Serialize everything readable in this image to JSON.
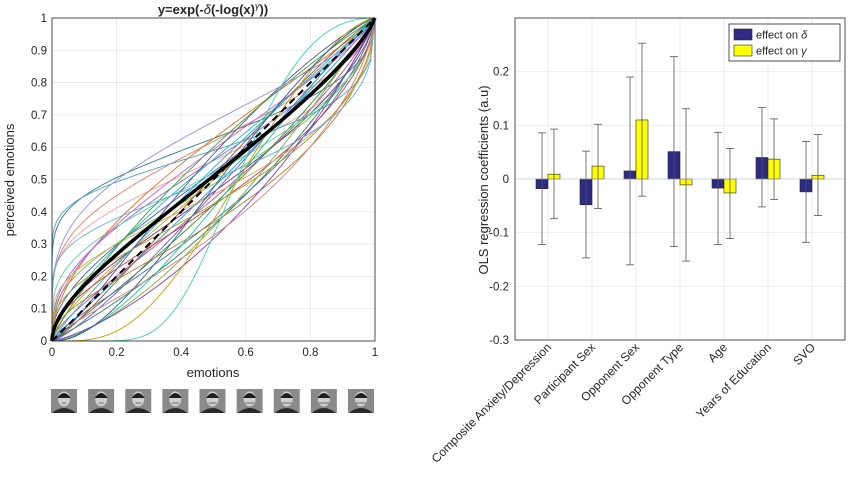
{
  "chart_data": [
    {
      "type": "line",
      "title": "y=exp(-δ(-log(x)^γ))",
      "title_parts": [
        "y=exp(-",
        "δ",
        "(-log(x)",
        "γ",
        "))"
      ],
      "xlabel": "emotions",
      "ylabel": "perceived emotions",
      "xlim": [
        0,
        1
      ],
      "ylim": [
        0,
        1
      ],
      "xticks": [
        0,
        0.2,
        0.4,
        0.6,
        0.8,
        1
      ],
      "xtick_labels": [
        "0",
        "0.2",
        "0.4",
        "0.6",
        "0.8",
        "1"
      ],
      "yticks": [
        0,
        0.1,
        0.2,
        0.3,
        0.4,
        0.5,
        0.6,
        0.7,
        0.8,
        0.9,
        1
      ],
      "ytick_labels": [
        "0",
        "0.1",
        "0.2",
        "0.3",
        "0.4",
        "0.5",
        "0.6",
        "0.7",
        "0.8",
        "0.9",
        "1"
      ],
      "grid": true,
      "mean_curve": {
        "delta": 0.9,
        "gamma": 0.8,
        "color": "#000000"
      },
      "identity_line": {
        "style": "dashed",
        "color": "#000000"
      },
      "series": [
        {
          "delta": 0.55,
          "gamma": 0.45,
          "color": "#2f7f7f"
        },
        {
          "delta": 0.6,
          "gamma": 0.6,
          "color": "#e0806a"
        },
        {
          "delta": 0.7,
          "gamma": 0.5,
          "color": "#f0a0a0"
        },
        {
          "delta": 0.75,
          "gamma": 0.7,
          "color": "#8a6fd0"
        },
        {
          "delta": 0.8,
          "gamma": 0.9,
          "color": "#36b0b0"
        },
        {
          "delta": 0.85,
          "gamma": 0.75,
          "color": "#4060c0"
        },
        {
          "delta": 0.9,
          "gamma": 0.6,
          "color": "#66cc44"
        },
        {
          "delta": 0.95,
          "gamma": 0.85,
          "color": "#d4a020"
        },
        {
          "delta": 1.0,
          "gamma": 0.7,
          "color": "#7030a0"
        },
        {
          "delta": 1.05,
          "gamma": 0.95,
          "color": "#20a0e0"
        },
        {
          "delta": 1.1,
          "gamma": 0.8,
          "color": "#c05090"
        },
        {
          "delta": 1.2,
          "gamma": 0.9,
          "color": "#3a8f3a"
        },
        {
          "delta": 1.3,
          "gamma": 0.75,
          "color": "#4f6fb0"
        },
        {
          "delta": 0.65,
          "gamma": 0.9,
          "color": "#e07020"
        },
        {
          "delta": 0.8,
          "gamma": 0.55,
          "color": "#5ad0a0"
        },
        {
          "delta": 1.0,
          "gamma": 1.1,
          "color": "#a05030"
        },
        {
          "delta": 1.15,
          "gamma": 1.05,
          "color": "#6a5acd"
        },
        {
          "delta": 0.9,
          "gamma": 1.0,
          "color": "#2ab0d0"
        },
        {
          "delta": 1.25,
          "gamma": 0.6,
          "color": "#b08030"
        },
        {
          "delta": 0.7,
          "gamma": 0.8,
          "color": "#d060d0"
        },
        {
          "delta": 1.4,
          "gamma": 0.85,
          "color": "#308060"
        },
        {
          "delta": 1.5,
          "gamma": 1.0,
          "color": "#7fb040"
        },
        {
          "delta": 0.6,
          "gamma": 0.35,
          "color": "#50a0c0"
        },
        {
          "delta": 1.1,
          "gamma": 0.65,
          "color": "#c04040"
        },
        {
          "delta": 0.85,
          "gamma": 1.2,
          "color": "#5050a0"
        },
        {
          "delta": 1.35,
          "gamma": 1.15,
          "color": "#20c0a0"
        },
        {
          "delta": 0.95,
          "gamma": 0.5,
          "color": "#e0a060"
        },
        {
          "delta": 1.6,
          "gamma": 0.9,
          "color": "#8040c0"
        },
        {
          "delta": 0.75,
          "gamma": 1.05,
          "color": "#40a040"
        },
        {
          "delta": 1.05,
          "gamma": 0.55,
          "color": "#a0a020"
        },
        {
          "delta": 2.5,
          "gamma": 2.2,
          "color": "#40d0b0"
        },
        {
          "delta": 1.7,
          "gamma": 1.5,
          "color": "#c0a000"
        },
        {
          "delta": 0.5,
          "gamma": 0.7,
          "color": "#9090e0"
        },
        {
          "delta": 1.2,
          "gamma": 1.3,
          "color": "#306090"
        },
        {
          "delta": 0.8,
          "gamma": 0.4,
          "color": "#60b0e0"
        },
        {
          "delta": 1.45,
          "gamma": 0.7,
          "color": "#d08080"
        }
      ],
      "faces": [
        0,
        0.2,
        0.4,
        0.6,
        0.8,
        1,
        1.2,
        1.4,
        1.6
      ]
    },
    {
      "type": "bar",
      "ylabel": "OLS regression coefficients (a.u)",
      "xlabel": "",
      "ylim": [
        -0.3,
        0.3
      ],
      "yticks": [
        -0.3,
        -0.2,
        -0.1,
        0,
        0.1,
        0.2
      ],
      "ytick_labels": [
        "-0.3",
        "-0.2",
        "-0.1",
        "0",
        "0.1",
        "0.2"
      ],
      "grid": true,
      "legend_position": "top-right",
      "categories": [
        "Composite Anxiety/Depression",
        "Participant Sex",
        "Opponent Sex",
        "Opponent Type",
        "Age",
        "Years of Education",
        "SVO"
      ],
      "series": [
        {
          "name": "effect on δ",
          "name_parts": [
            "effect on ",
            "δ"
          ],
          "color": "#2e2a86",
          "values": [
            -0.018,
            -0.048,
            0.015,
            0.051,
            -0.017,
            0.04,
            -0.024
          ],
          "err_low": [
            -0.122,
            -0.147,
            -0.16,
            -0.126,
            -0.122,
            -0.052,
            -0.118
          ],
          "err_high": [
            0.086,
            0.052,
            0.19,
            0.228,
            0.087,
            0.133,
            0.07
          ]
        },
        {
          "name": "effect on γ",
          "name_parts": [
            "effect on ",
            "γ"
          ],
          "color": "#ffff00",
          "values": [
            0.009,
            0.024,
            0.11,
            -0.011,
            -0.026,
            0.037,
            0.007
          ],
          "err_low": [
            -0.074,
            -0.055,
            -0.032,
            -0.153,
            -0.111,
            -0.038,
            -0.068
          ],
          "err_high": [
            0.093,
            0.102,
            0.253,
            0.131,
            0.057,
            0.112,
            0.083
          ]
        }
      ]
    }
  ]
}
